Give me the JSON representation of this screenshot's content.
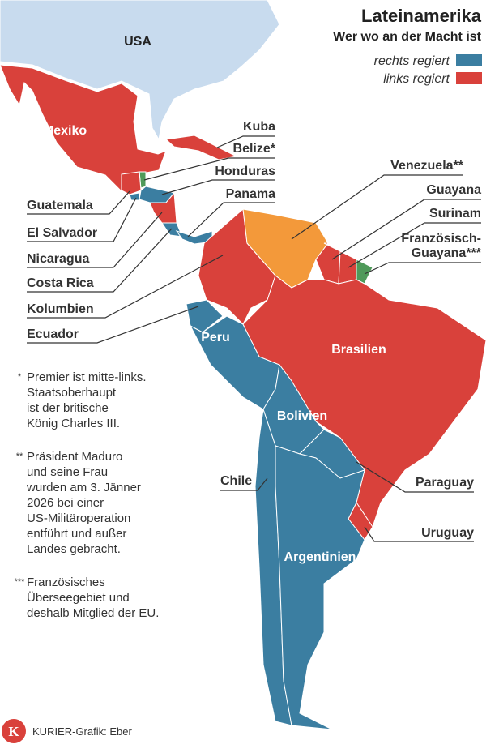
{
  "header": {
    "title": "Lateinamerika",
    "subtitle": "Wer wo an der Macht ist"
  },
  "legend": [
    {
      "label": "rechts regiert",
      "color": "#3b7ea1"
    },
    {
      "label": "links regiert",
      "color": "#d9413b"
    }
  ],
  "map": {
    "countries": [
      {
        "label": "USA",
        "color": "#c8dbee"
      },
      {
        "label": "Mexiko",
        "color": "#d9413b"
      },
      {
        "label": "Kuba",
        "color": "#d9413b"
      },
      {
        "label": "Belize*",
        "color": "#4f9a5a"
      },
      {
        "label": "Guatemala",
        "color": "#d9413b"
      },
      {
        "label": "Honduras",
        "color": "#3b7ea1"
      },
      {
        "label": "El Salvador",
        "color": "#3b7ea1"
      },
      {
        "label": "Nicaragua",
        "color": "#d9413b"
      },
      {
        "label": "Costa Rica",
        "color": "#3b7ea1"
      },
      {
        "label": "Panama",
        "color": "#3b7ea1"
      },
      {
        "label": "Kolumbien",
        "color": "#d9413b"
      },
      {
        "label": "Venezuela**",
        "color": "#f3993a"
      },
      {
        "label": "Guayana",
        "color": "#d9413b"
      },
      {
        "label": "Surinam",
        "color": "#d9413b"
      },
      {
        "label_lines": [
          "Französisch-",
          "Guayana***"
        ],
        "color": "#4f9a5a"
      },
      {
        "label": "Ecuador",
        "color": "#3b7ea1"
      },
      {
        "label": "Peru",
        "color": "#3b7ea1"
      },
      {
        "label": "Brasilien",
        "color": "#d9413b"
      },
      {
        "label": "Bolivien",
        "color": "#3b7ea1"
      },
      {
        "label": "Paraguay",
        "color": "#3b7ea1"
      },
      {
        "label": "Uruguay",
        "color": "#d9413b"
      },
      {
        "label": "Chile",
        "color": "#3b7ea1"
      },
      {
        "label": "Argentinien",
        "color": "#3b7ea1"
      }
    ]
  },
  "footnotes": [
    {
      "marker": "*",
      "lines": [
        "Premier ist mitte-links.",
        "Staatsoberhaupt",
        "ist der britische",
        "König Charles III."
      ]
    },
    {
      "marker": "**",
      "lines": [
        "Präsident Maduro",
        "und seine Frau",
        "wurden am 3. Jänner",
        "2026 bei einer",
        "US-Militäroperation",
        "entführt und außer",
        "Landes gebracht."
      ]
    },
    {
      "marker": "***",
      "lines": [
        "Französisches",
        "Überseegebiet und",
        "deshalb Mitglied der EU."
      ]
    }
  ],
  "footer": {
    "logo": "K",
    "credit": "KURIER-Grafik: Eber"
  }
}
